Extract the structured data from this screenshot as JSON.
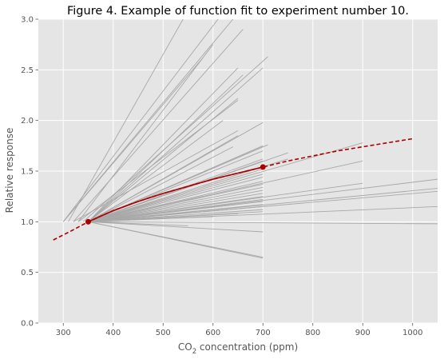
{
  "chart_data": {
    "type": "line",
    "title": "Figure 4. Example of function fit to experiment number 10.",
    "xlabel_main": "CO",
    "xlabel_sub": "2",
    "xlabel_rest": " concentration (ppm)",
    "ylabel": "Relative response",
    "xlim": [
      250,
      1050
    ],
    "ylim": [
      0,
      3.0
    ],
    "xticks": [
      300,
      400,
      500,
      600,
      700,
      800,
      900,
      1000
    ],
    "yticks": [
      0.0,
      0.5,
      1.0,
      1.5,
      2.0,
      2.5,
      3.0
    ],
    "xtick_labels": [
      "300",
      "400",
      "500",
      "600",
      "700",
      "800",
      "900",
      "1000"
    ],
    "ytick_labels": [
      "0.0",
      "0.5",
      "1.0",
      "1.5",
      "2.0",
      "2.5",
      "3.0"
    ],
    "grid": true,
    "colors": {
      "background": "#e5e5e5",
      "grid": "#ffffff",
      "experiments": "#a8a8a8",
      "fit": "#aa0000"
    },
    "experiments": [
      [
        [
          300,
          1.0
        ],
        [
          640,
          3.0
        ]
      ],
      [
        [
          300,
          1.0
        ],
        [
          610,
          3.0
        ]
      ],
      [
        [
          310,
          1.0
        ],
        [
          540,
          3.0
        ]
      ],
      [
        [
          320,
          1.0
        ],
        [
          660,
          2.9
        ]
      ],
      [
        [
          330,
          1.0
        ],
        [
          600,
          2.75
        ]
      ],
      [
        [
          300,
          1.0
        ],
        [
          580,
          2.62
        ]
      ],
      [
        [
          340,
          1.0
        ],
        [
          710,
          2.63
        ]
      ],
      [
        [
          350,
          1.0
        ],
        [
          700,
          2.52
        ]
      ],
      [
        [
          350,
          1.0
        ],
        [
          650,
          2.52
        ]
      ],
      [
        [
          350,
          1.0
        ],
        [
          660,
          2.45
        ]
      ],
      [
        [
          350,
          1.0
        ],
        [
          650,
          2.22
        ]
      ],
      [
        [
          330,
          1.0
        ],
        [
          650,
          2.2
        ]
      ],
      [
        [
          350,
          1.0
        ],
        [
          620,
          2.0
        ]
      ],
      [
        [
          350,
          1.0
        ],
        [
          700,
          1.98
        ]
      ],
      [
        [
          320,
          1.0
        ],
        [
          650,
          1.9
        ]
      ],
      [
        [
          350,
          1.0
        ],
        [
          650,
          1.85
        ]
      ],
      [
        [
          350,
          1.0
        ],
        [
          700,
          1.75
        ]
      ],
      [
        [
          350,
          1.0
        ],
        [
          710,
          1.76
        ]
      ],
      [
        [
          350,
          1.0
        ],
        [
          700,
          1.74
        ]
      ],
      [
        [
          350,
          1.0
        ],
        [
          640,
          1.74
        ]
      ],
      [
        [
          350,
          1.0
        ],
        [
          700,
          1.7
        ]
      ],
      [
        [
          350,
          1.0
        ],
        [
          750,
          1.68
        ]
      ],
      [
        [
          350,
          1.0
        ],
        [
          700,
          1.62
        ]
      ],
      [
        [
          350,
          1.0
        ],
        [
          700,
          1.6
        ]
      ],
      [
        [
          350,
          1.0
        ],
        [
          750,
          1.62
        ]
      ],
      [
        [
          350,
          1.0
        ],
        [
          900,
          1.78
        ]
      ],
      [
        [
          350,
          1.0
        ],
        [
          900,
          1.6
        ]
      ],
      [
        [
          350,
          1.0
        ],
        [
          700,
          1.52
        ]
      ],
      [
        [
          350,
          1.0
        ],
        [
          700,
          1.47
        ]
      ],
      [
        [
          350,
          1.0
        ],
        [
          700,
          1.44
        ]
      ],
      [
        [
          350,
          1.0
        ],
        [
          700,
          1.4
        ]
      ],
      [
        [
          350,
          1.0
        ],
        [
          700,
          1.37
        ]
      ],
      [
        [
          350,
          1.0
        ],
        [
          700,
          1.34
        ]
      ],
      [
        [
          350,
          1.0
        ],
        [
          700,
          1.31
        ]
      ],
      [
        [
          350,
          1.0
        ],
        [
          700,
          1.28
        ]
      ],
      [
        [
          350,
          1.0
        ],
        [
          700,
          1.25
        ]
      ],
      [
        [
          350,
          1.0
        ],
        [
          700,
          1.22
        ]
      ],
      [
        [
          350,
          1.0
        ],
        [
          700,
          1.2
        ]
      ],
      [
        [
          350,
          1.0
        ],
        [
          700,
          1.17
        ]
      ],
      [
        [
          350,
          1.0
        ],
        [
          700,
          1.15
        ]
      ],
      [
        [
          350,
          1.0
        ],
        [
          700,
          1.12
        ]
      ],
      [
        [
          350,
          1.0
        ],
        [
          700,
          1.1
        ]
      ],
      [
        [
          350,
          1.0
        ],
        [
          650,
          1.08
        ]
      ],
      [
        [
          350,
          1.0
        ],
        [
          1050,
          1.42
        ]
      ],
      [
        [
          350,
          1.0
        ],
        [
          1050,
          1.33
        ]
      ],
      [
        [
          350,
          1.0
        ],
        [
          1050,
          1.3
        ]
      ],
      [
        [
          350,
          1.0
        ],
        [
          1050,
          1.15
        ]
      ],
      [
        [
          350,
          1.0
        ],
        [
          900,
          1.38
        ]
      ],
      [
        [
          350,
          1.0
        ],
        [
          1050,
          0.98
        ]
      ],
      [
        [
          350,
          1.0
        ],
        [
          700,
          0.9
        ]
      ],
      [
        [
          350,
          1.0
        ],
        [
          700,
          0.65
        ]
      ],
      [
        [
          350,
          1.0
        ],
        [
          700,
          0.64
        ]
      ],
      [
        [
          350,
          1.0
        ],
        [
          550,
          0.96
        ]
      ],
      [
        [
          350,
          1.0
        ],
        [
          600,
          1.05
        ]
      ]
    ],
    "fit_solid": [
      [
        350,
        1.0
      ],
      [
        400,
        1.11
      ],
      [
        450,
        1.2
      ],
      [
        500,
        1.28
      ],
      [
        550,
        1.35
      ],
      [
        600,
        1.42
      ],
      [
        650,
        1.48
      ],
      [
        700,
        1.54
      ]
    ],
    "fit_dashed": [
      [
        280,
        0.82
      ],
      [
        320,
        0.92
      ],
      [
        350,
        1.0
      ],
      [
        400,
        1.11
      ],
      [
        450,
        1.2
      ],
      [
        500,
        1.28
      ],
      [
        550,
        1.35
      ],
      [
        600,
        1.42
      ],
      [
        650,
        1.48
      ],
      [
        700,
        1.54
      ],
      [
        750,
        1.6
      ],
      [
        800,
        1.65
      ],
      [
        850,
        1.7
      ],
      [
        900,
        1.74
      ],
      [
        950,
        1.78
      ],
      [
        1000,
        1.82
      ]
    ],
    "fit_points": [
      [
        350,
        1.0
      ],
      [
        700,
        1.54
      ]
    ]
  }
}
